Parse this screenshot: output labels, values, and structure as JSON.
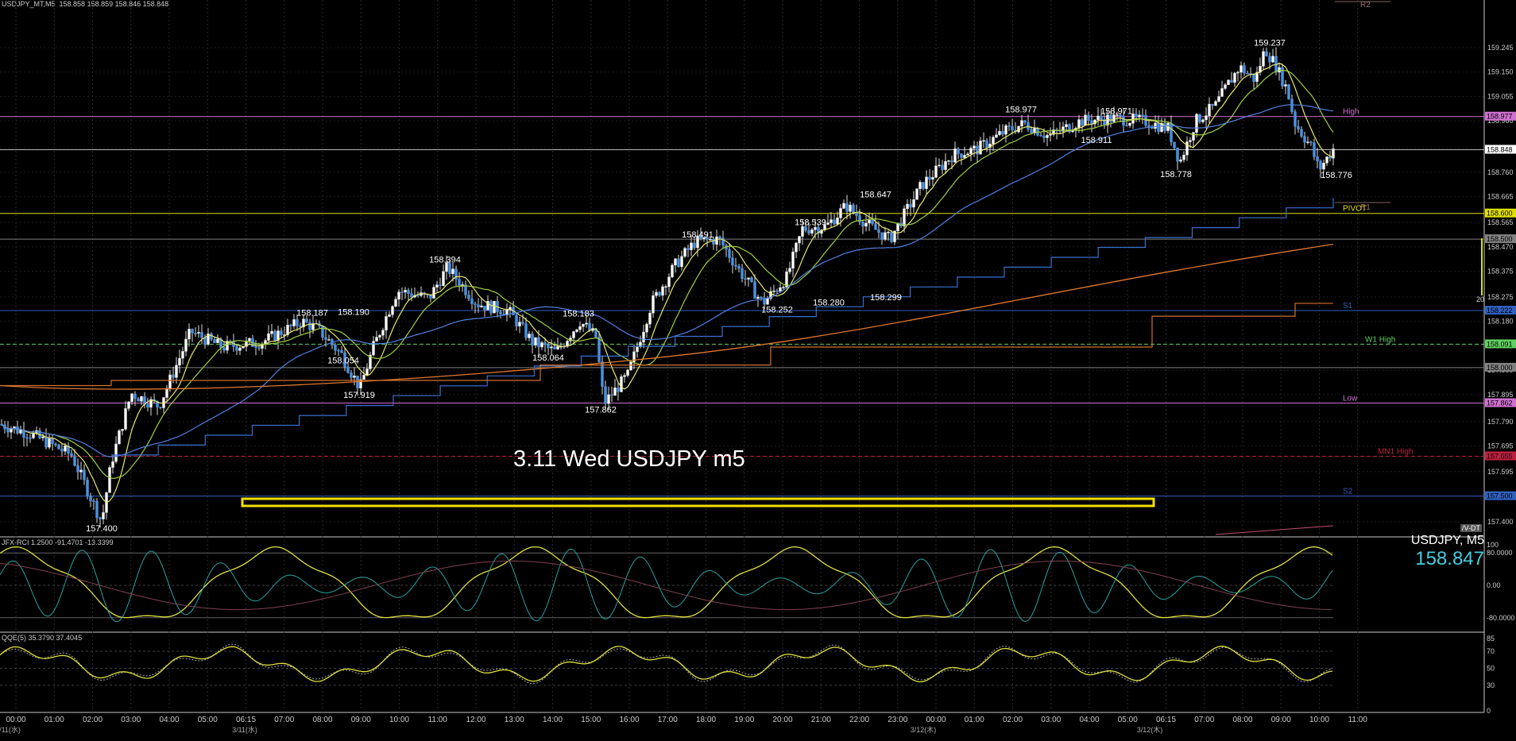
{
  "window": {
    "title": "USDJPY_MT,M5",
    "ohlc": "158.858 158.859 158.846 158.848"
  },
  "annotation": {
    "text": "3.11 Wed USDJPY m5"
  },
  "price_axis": {
    "ticks": [
      "159.245",
      "159.150",
      "159.055",
      "158.960",
      "158.855",
      "158.760",
      "158.665",
      "158.565",
      "158.470",
      "158.375",
      "158.275",
      "158.180",
      "158.085",
      "157.990",
      "157.895",
      "157.790",
      "157.695",
      "157.595",
      "157.500",
      "157.400"
    ],
    "current_price": "158.848"
  },
  "levels": [
    {
      "name": "R2",
      "value": "",
      "color": "#a07070"
    },
    {
      "name": "High",
      "value": "158.977",
      "color": "#d070d0"
    },
    {
      "name": "PIVOT",
      "value": "158.600",
      "color": "#e0e000"
    },
    {
      "name": "R1",
      "value": "",
      "color": "#a07070"
    },
    {
      "name": "",
      "value": "158.500",
      "color": "#808080"
    },
    {
      "name": "S1",
      "value": "158.222",
      "color": "#3060c0"
    },
    {
      "name": "W1 High",
      "value": "158.091",
      "color": "#60d060"
    },
    {
      "name": "",
      "value": "158.000",
      "color": "#808080"
    },
    {
      "name": "Low",
      "value": "157.862",
      "color": "#d070d0"
    },
    {
      "name": "MN1 High",
      "value": "157.655",
      "color": "#c02040"
    },
    {
      "name": "S2",
      "value": "157.500",
      "color": "#3060c0"
    }
  ],
  "price_labels": [
    "159.237",
    "158.977",
    "158.971",
    "158.911",
    "158.778",
    "158.776",
    "158.647",
    "158.539",
    "158.491",
    "158.394",
    "158.252",
    "158.280",
    "158.299",
    "158.187",
    "158.190",
    "158.183",
    "158.054",
    "158.064",
    "157.919",
    "157.862",
    "157.400"
  ],
  "indicators": {
    "rci": {
      "label": "JFX-RCI 1.2500 -91.4701 -13.3399",
      "ticks": [
        "100",
        "80.0000",
        "0.00",
        "-80.0000"
      ]
    },
    "qqe": {
      "label": "QQE(5) 35.3790 37.4045",
      "ticks": [
        "85",
        "70",
        "50",
        "30",
        "0"
      ]
    },
    "symbol_box": {
      "symbol": "USDJPY, M5",
      "price": "158.847"
    },
    "side_tag": "20",
    "vdt_tag": "/V-DT"
  },
  "time_axis": {
    "times": [
      "00:00",
      "01:00",
      "02:00",
      "03:00",
      "04:00",
      "05:00",
      "06:15",
      "07:00",
      "08:00",
      "09:00",
      "10:00",
      "11:00",
      "12:00",
      "13:00",
      "14:00",
      "15:00",
      "16:00",
      "17:00",
      "18:00",
      "19:00",
      "20:00",
      "21:00",
      "22:00",
      "23:00",
      "00:00",
      "01:00",
      "02:00",
      "03:00",
      "04:00",
      "05:00",
      "06:15",
      "07:00",
      "08:00",
      "09:00",
      "10:00",
      "11:00"
    ],
    "dates": [
      "3/11(水)",
      "3/11(水)",
      "3/12(木)",
      "3/12(木)"
    ]
  },
  "colors": {
    "background": "#000000",
    "candle": "#4a90e0",
    "ma_fast": "#e8e870",
    "ma_mid": "#a0d040",
    "ma_slow": "#5080e0",
    "ma_long": "#e07830",
    "highlight_box": "#f0e000",
    "rci_yellow": "#e0e040",
    "rci_teal": "#2aa0a0",
    "symbol_price": "#40d0e0"
  }
}
